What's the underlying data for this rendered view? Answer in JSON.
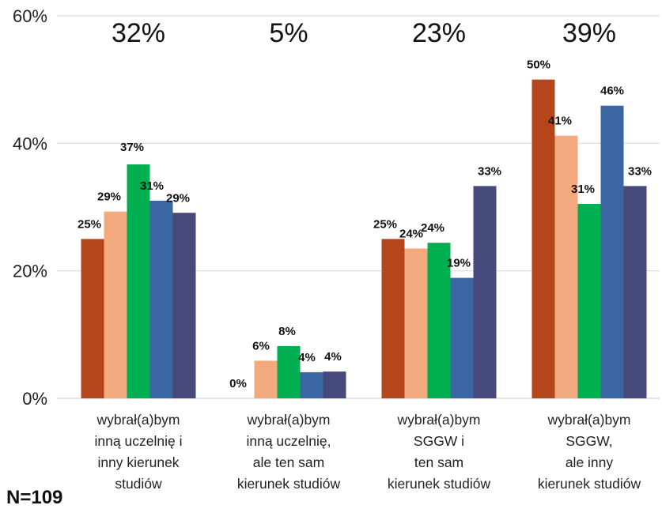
{
  "chart_data": {
    "type": "bar",
    "categories": [
      [
        "wybrał(a)bym",
        "inną uczelnię i",
        "inny kierunek",
        "studiów"
      ],
      [
        "wybrał(a)bym",
        "inną uczelnię,",
        "ale ten sam",
        "kierunek studiów"
      ],
      [
        "wybrał(a)bym",
        "SGGW i",
        "ten sam",
        "kierunek studiów"
      ],
      [
        "wybrał(a)bym",
        "SGGW,",
        "ale inny",
        "kierunek studiów"
      ]
    ],
    "category_totals": [
      "32%",
      "5%",
      "23%",
      "39%"
    ],
    "series": [
      {
        "values": [
          25,
          0,
          25,
          50
        ],
        "labels": [
          "25%",
          "0%",
          "25%",
          "50%"
        ]
      },
      {
        "values": [
          29.3,
          5.9,
          23.5,
          41.2
        ],
        "labels": [
          "29%",
          "6%",
          "24%",
          "41%"
        ]
      },
      {
        "values": [
          36.7,
          8.2,
          24.4,
          30.5
        ],
        "labels": [
          "37%",
          "8%",
          "24%",
          "31%"
        ]
      },
      {
        "values": [
          31,
          4.1,
          18.9,
          45.9
        ],
        "labels": [
          "31%",
          "4%",
          "19%",
          "46%"
        ]
      },
      {
        "values": [
          29.1,
          4.2,
          33.3,
          33.3
        ],
        "labels": [
          "29%",
          "4%",
          "33%",
          "33%"
        ]
      }
    ],
    "ylim": [
      0,
      60
    ],
    "yticks": [
      "0%",
      "20%",
      "40%",
      "60%"
    ],
    "grid": true,
    "colors": [
      "#B5451B",
      "#F3A97E",
      "#00B050",
      "#3A66A1",
      "#464A7A"
    ]
  },
  "footer": "N=109"
}
